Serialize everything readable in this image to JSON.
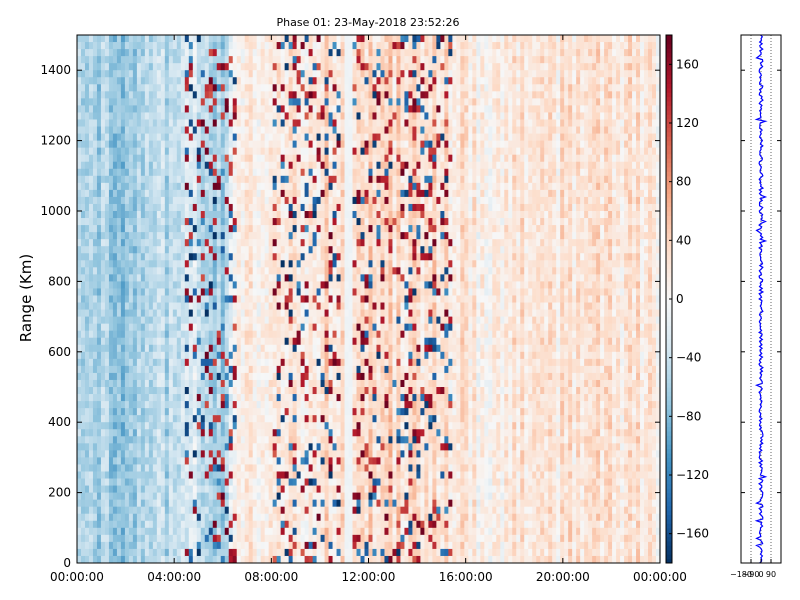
{
  "chart_data": [
    {
      "type": "heatmap",
      "title": "Phase 01: 23-May-2018 23:52:26",
      "xlabel": "",
      "ylabel": "Range (Km)",
      "x_ticks": [
        "00:00:00",
        "04:00:00",
        "08:00:00",
        "12:00:00",
        "16:00:00",
        "20:00:00",
        "00:00:00"
      ],
      "xlim_hours": [
        0,
        24
      ],
      "y_ticks": [
        0,
        200,
        400,
        600,
        800,
        1000,
        1200,
        1400
      ],
      "ylim": [
        0,
        1500
      ],
      "colormap": "RdBu_r",
      "colorbar": {
        "ticks": [
          160,
          120,
          80,
          40,
          0,
          -40,
          -80,
          -120,
          -160
        ],
        "range": [
          -180,
          180
        ]
      },
      "gap_hours": [
        10.95,
        11.35
      ],
      "column_trend": [
        {
          "hour": 0,
          "phase": -55
        },
        {
          "hour": 1,
          "phase": -60
        },
        {
          "hour": 2,
          "phase": -70
        },
        {
          "hour": 3,
          "phase": -55
        },
        {
          "hour": 4,
          "phase": -45
        },
        {
          "hour": 5,
          "phase": -35
        },
        {
          "hour": 6,
          "phase": -60
        },
        {
          "hour": 6.5,
          "phase": 15
        },
        {
          "hour": 8,
          "phase": 20
        },
        {
          "hour": 10,
          "phase": 25
        },
        {
          "hour": 11.5,
          "phase": 40
        },
        {
          "hour": 13,
          "phase": 35
        },
        {
          "hour": 15,
          "phase": 25
        },
        {
          "hour": 17,
          "phase": 10
        },
        {
          "hour": 18,
          "phase": 20
        },
        {
          "hour": 20,
          "phase": 22
        },
        {
          "hour": 24,
          "phase": 20
        }
      ],
      "noisy_hours": [
        [
          4.5,
          6.5
        ],
        [
          8.0,
          10.8
        ],
        [
          11.4,
          15.5
        ]
      ]
    },
    {
      "type": "line",
      "title": "",
      "xlabel": "",
      "ylabel": "",
      "x_ticks": [
        -180,
        -90,
        0,
        90
      ],
      "xlim": [
        -180,
        180
      ],
      "ylim": [
        0,
        1500
      ],
      "series_color": "#0000ff",
      "mean_value": 0,
      "spread": 18
    }
  ]
}
